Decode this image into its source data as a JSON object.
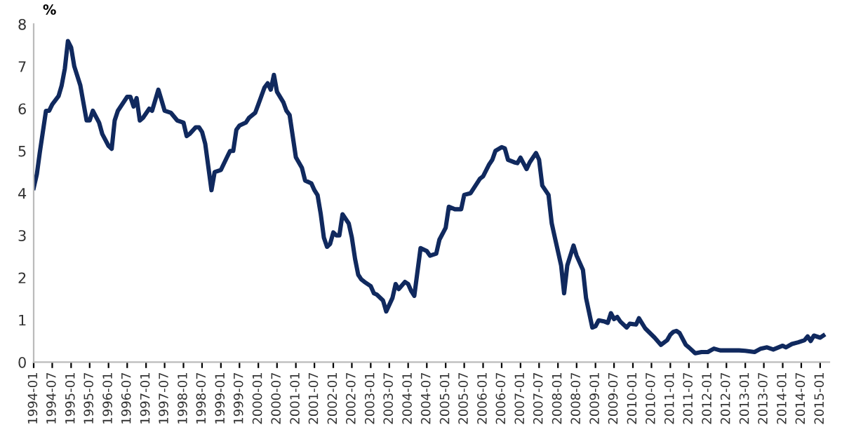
{
  "chart_data": {
    "type": "line",
    "ylabel": "%",
    "x": [
      "1994-01",
      "1994-02",
      "1994-03",
      "1994-05",
      "1994-06",
      "1994-07",
      "1994-09",
      "1994-10",
      "1994-11",
      "1994-12",
      "1995-01",
      "1995-02",
      "1995-04",
      "1995-06",
      "1995-07",
      "1995-08",
      "1995-10",
      "1995-11",
      "1996-01",
      "1996-02",
      "1996-03",
      "1996-04",
      "1996-07",
      "1996-08",
      "1996-09",
      "1996-10",
      "1996-11",
      "1996-12",
      "1997-02",
      "1997-03",
      "1997-05",
      "1997-06",
      "1997-07",
      "1997-09",
      "1997-11",
      "1998-01",
      "1998-02",
      "1998-03",
      "1998-05",
      "1998-06",
      "1998-07",
      "1998-08",
      "1998-10",
      "1998-11",
      "1999-01",
      "1999-03",
      "1999-04",
      "1999-05",
      "1999-06",
      "1999-07",
      "1999-09",
      "1999-10",
      "1999-12",
      "2000-01",
      "2000-03",
      "2000-04",
      "2000-05",
      "2000-06",
      "2000-07",
      "2000-09",
      "2000-10",
      "2000-11",
      "2001-01",
      "2001-03",
      "2001-04",
      "2001-06",
      "2001-07",
      "2001-08",
      "2001-09",
      "2001-10",
      "2001-11",
      "2001-12",
      "2002-01",
      "2002-02",
      "2002-03",
      "2002-04",
      "2002-06",
      "2002-07",
      "2002-08",
      "2002-09",
      "2002-10",
      "2002-11",
      "2003-01",
      "2003-02",
      "2003-03",
      "2003-05",
      "2003-06",
      "2003-08",
      "2003-09",
      "2003-10",
      "2003-12",
      "2004-01",
      "2004-02",
      "2004-03",
      "2004-05",
      "2004-07",
      "2004-08",
      "2004-10",
      "2004-11",
      "2005-01",
      "2005-02",
      "2005-04",
      "2005-06",
      "2005-07",
      "2005-09",
      "2005-12",
      "2006-01",
      "2006-03",
      "2006-04",
      "2006-05",
      "2006-07",
      "2006-08",
      "2006-09",
      "2006-11",
      "2006-12",
      "2007-01",
      "2007-03",
      "2007-04",
      "2007-06",
      "2007-07",
      "2007-08",
      "2007-10",
      "2007-11",
      "2007-12",
      "2008-02",
      "2008-03",
      "2008-04",
      "2008-06",
      "2008-07",
      "2008-09",
      "2008-10",
      "2008-12",
      "2009-01",
      "2009-02",
      "2009-04",
      "2009-05",
      "2009-06",
      "2009-07",
      "2009-08",
      "2009-09",
      "2009-11",
      "2009-12",
      "2010-02",
      "2010-03",
      "2010-05",
      "2010-08",
      "2010-10",
      "2010-12",
      "2011-01",
      "2011-02",
      "2011-03",
      "2011-04",
      "2011-06",
      "2011-07",
      "2011-09",
      "2011-11",
      "2012-01",
      "2012-03",
      "2012-05",
      "2012-08",
      "2012-11",
      "2013-01",
      "2013-04",
      "2013-06",
      "2013-08",
      "2013-10",
      "2014-01",
      "2014-02",
      "2014-04",
      "2014-06",
      "2014-08",
      "2014-09",
      "2014-10",
      "2014-11",
      "2015-01",
      "2015-02"
    ],
    "series": [
      {
        "color": "#10295e",
        "values": [
          4.12,
          4.45,
          4.95,
          5.95,
          5.95,
          6.1,
          6.3,
          6.55,
          6.95,
          7.6,
          7.45,
          7.0,
          6.55,
          5.72,
          5.72,
          5.95,
          5.67,
          5.4,
          5.12,
          5.05,
          5.72,
          5.95,
          6.28,
          6.28,
          6.05,
          6.25,
          5.72,
          5.78,
          6.0,
          5.95,
          6.45,
          6.2,
          5.95,
          5.9,
          5.72,
          5.67,
          5.35,
          5.4,
          5.56,
          5.56,
          5.45,
          5.17,
          4.07,
          4.5,
          4.55,
          4.85,
          5.0,
          5.0,
          5.5,
          5.6,
          5.67,
          5.78,
          5.9,
          6.1,
          6.5,
          6.6,
          6.45,
          6.8,
          6.4,
          6.15,
          5.95,
          5.85,
          4.85,
          4.6,
          4.3,
          4.23,
          4.07,
          3.95,
          3.5,
          2.95,
          2.73,
          2.8,
          3.07,
          3.0,
          3.0,
          3.5,
          3.28,
          2.95,
          2.45,
          2.07,
          1.96,
          1.9,
          1.8,
          1.63,
          1.6,
          1.46,
          1.2,
          1.52,
          1.85,
          1.73,
          1.9,
          1.85,
          1.68,
          1.57,
          2.7,
          2.63,
          2.52,
          2.57,
          2.9,
          3.18,
          3.68,
          3.62,
          3.62,
          3.96,
          4.0,
          4.34,
          4.4,
          4.68,
          4.79,
          5.0,
          5.09,
          5.06,
          4.79,
          4.73,
          4.71,
          4.84,
          4.57,
          4.73,
          4.95,
          4.79,
          4.18,
          3.96,
          3.29,
          2.96,
          2.29,
          1.63,
          2.29,
          2.76,
          2.52,
          2.18,
          1.52,
          0.82,
          0.85,
          0.99,
          0.96,
          0.93,
          1.16,
          1.02,
          1.07,
          0.96,
          0.82,
          0.91,
          0.89,
          1.04,
          0.8,
          0.58,
          0.41,
          0.52,
          0.65,
          0.72,
          0.74,
          0.69,
          0.41,
          0.35,
          0.21,
          0.24,
          0.24,
          0.32,
          0.28,
          0.28,
          0.28,
          0.27,
          0.24,
          0.32,
          0.35,
          0.3,
          0.39,
          0.35,
          0.43,
          0.47,
          0.52,
          0.61,
          0.5,
          0.63,
          0.58,
          0.63
        ]
      }
    ],
    "xlim": [
      "1994-01",
      "2015-04"
    ],
    "xticks": [
      "1994-01",
      "1994-07",
      "1995-01",
      "1995-07",
      "1996-01",
      "1996-07",
      "1997-01",
      "1997-07",
      "1998-01",
      "1998-07",
      "1999-01",
      "1999-07",
      "2000-01",
      "2000-07",
      "2001-01",
      "2001-07",
      "2002-01",
      "2002-07",
      "2003-01",
      "2003-07",
      "2004-01",
      "2004-07",
      "2005-01",
      "2005-07",
      "2006-01",
      "2006-07",
      "2007-01",
      "2007-07",
      "2008-01",
      "2008-07",
      "2009-01",
      "2009-07",
      "2010-01",
      "2010-07",
      "2011-01",
      "2011-07",
      "2012-01",
      "2012-07",
      "2013-01",
      "2013-07",
      "2014-01",
      "2014-07",
      "2015-01"
    ],
    "ylim": [
      0,
      8
    ],
    "yticks": [
      0,
      1,
      2,
      3,
      4,
      5,
      6,
      7,
      8
    ],
    "grid": false,
    "marker": "none",
    "line_style": "solid"
  }
}
